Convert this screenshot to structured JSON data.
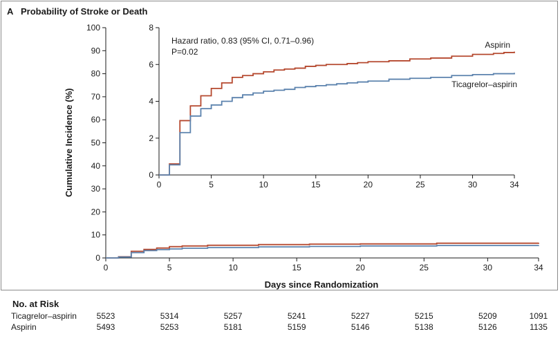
{
  "panel": {
    "letter": "A",
    "title": "Probability of Stroke or Death"
  },
  "colors": {
    "aspirin": "#b5482e",
    "ticagrelor": "#5b82ad",
    "axis": "#1a1a1a"
  },
  "chart_data": [
    {
      "type": "line",
      "role": "main",
      "ylabel": "Cumulative Incidence (%)",
      "xlabel": "Days since Randomization",
      "xlim": [
        0,
        34
      ],
      "ylim": [
        0,
        100
      ],
      "xticks": [
        0,
        5,
        10,
        15,
        20,
        25,
        30,
        34
      ],
      "yticks": [
        0,
        10,
        20,
        30,
        40,
        50,
        60,
        70,
        80,
        90,
        100
      ],
      "step": true,
      "series": [
        {
          "name": "Aspirin",
          "color": "#b5482e",
          "x": [
            0,
            1,
            2,
            3,
            4,
            5,
            6,
            8,
            12,
            16,
            20,
            26,
            34
          ],
          "y": [
            0,
            0.5,
            2.9,
            3.7,
            4.3,
            4.9,
            5.2,
            5.5,
            5.8,
            6.0,
            6.1,
            6.4,
            6.6
          ]
        },
        {
          "name": "Ticagrelor–aspirin",
          "color": "#5b82ad",
          "x": [
            0,
            1,
            2,
            3,
            4,
            5,
            6,
            8,
            12,
            16,
            20,
            26,
            34
          ],
          "y": [
            0,
            0.4,
            2.3,
            3.2,
            3.6,
            3.9,
            4.2,
            4.5,
            4.8,
            5.0,
            5.2,
            5.4,
            5.5
          ]
        }
      ]
    },
    {
      "type": "line",
      "role": "inset",
      "xlim": [
        0,
        34
      ],
      "ylim": [
        0,
        8
      ],
      "xticks": [
        0,
        5,
        10,
        15,
        20,
        25,
        30,
        34
      ],
      "yticks": [
        0,
        2,
        4,
        6,
        8
      ],
      "step": true,
      "annotation": [
        "Hazard ratio, 0.83 (95% CI, 0.71–0.96)",
        "P=0.02"
      ],
      "series": [
        {
          "name": "Aspirin",
          "color": "#b5482e",
          "x": [
            0,
            1,
            2,
            3,
            4,
            5,
            6,
            7,
            8,
            9,
            10,
            11,
            12,
            13,
            14,
            15,
            16,
            17,
            18,
            19,
            20,
            22,
            24,
            26,
            28,
            30,
            32,
            33,
            34
          ],
          "y": [
            0,
            0.6,
            2.95,
            3.75,
            4.3,
            4.7,
            5.0,
            5.3,
            5.4,
            5.5,
            5.6,
            5.7,
            5.75,
            5.8,
            5.9,
            5.95,
            6.0,
            6.0,
            6.05,
            6.1,
            6.15,
            6.2,
            6.3,
            6.35,
            6.45,
            6.55,
            6.6,
            6.65,
            6.7
          ]
        },
        {
          "name": "Ticagrelor–aspirin",
          "color": "#5b82ad",
          "x": [
            0,
            1,
            2,
            3,
            4,
            5,
            6,
            7,
            8,
            9,
            10,
            11,
            12,
            13,
            14,
            15,
            16,
            17,
            18,
            19,
            20,
            22,
            24,
            26,
            28,
            30,
            32,
            34
          ],
          "y": [
            0,
            0.55,
            2.3,
            3.2,
            3.6,
            3.8,
            4.0,
            4.2,
            4.35,
            4.45,
            4.55,
            4.6,
            4.65,
            4.75,
            4.8,
            4.85,
            4.9,
            4.95,
            5.0,
            5.05,
            5.1,
            5.2,
            5.25,
            5.3,
            5.4,
            5.45,
            5.5,
            5.55
          ]
        }
      ]
    }
  ],
  "risk_table": {
    "title": "No. at Risk",
    "days": [
      0,
      5,
      10,
      15,
      20,
      25,
      30,
      34
    ],
    "rows": [
      {
        "label": "Ticagrelor–aspirin",
        "values": [
          "5523",
          "5314",
          "5257",
          "5241",
          "5227",
          "5215",
          "5209",
          "1091"
        ]
      },
      {
        "label": "Aspirin",
        "values": [
          "5493",
          "5253",
          "5181",
          "5159",
          "5146",
          "5138",
          "5126",
          "1135"
        ]
      }
    ]
  }
}
